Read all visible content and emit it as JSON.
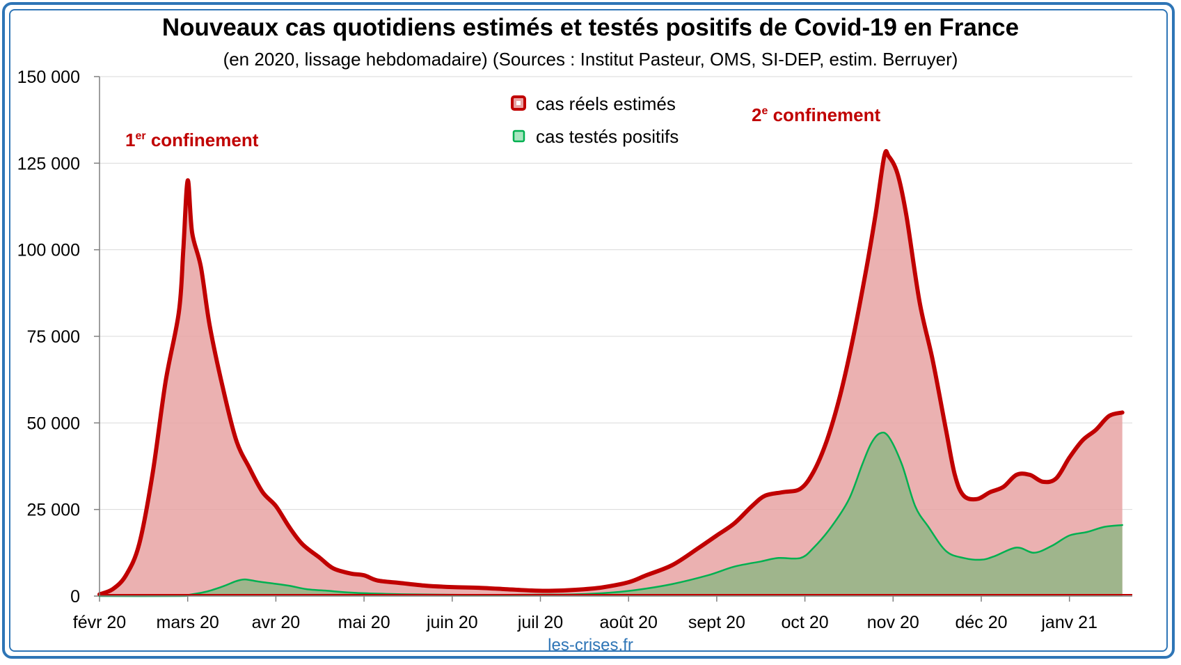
{
  "title": "Nouveaux cas quotidiens estimés et testés positifs de Covid-19 en France",
  "subtitle": "(en 2020, lissage hebdomadaire) (Sources : Institut Pasteur, OMS, SI-DEP, estim. Berruyer)",
  "credit": "les-crises.fr",
  "annotations": {
    "first_prefix": "1",
    "first_sup": "er",
    "first_text": " confinement",
    "second_prefix": "2",
    "second_sup": "e",
    "second_text": " confinement"
  },
  "colors": {
    "estimated_line": "#c00000",
    "estimated_fill": "#e8a3a3",
    "tested_line": "#00b050",
    "tested_fill": "#9fb58c",
    "frame": "#2e75b6",
    "grid": "#d9d9d9"
  },
  "chart_data": {
    "type": "area",
    "title": "Nouveaux cas quotidiens estimés et testés positifs de Covid-19 en France",
    "subtitle": "(en 2020, lissage hebdomadaire) (Sources : Institut Pasteur, OMS, SI-DEP, estim. Berruyer)",
    "xlabel": "",
    "ylabel": "",
    "x_ticks": [
      "févr 20",
      "mars 20",
      "avr 20",
      "mai 20",
      "juin 20",
      "juil 20",
      "août 20",
      "sept 20",
      "oct 20",
      "nov 20",
      "déc 20",
      "janv 21"
    ],
    "y_ticks": [
      "0",
      "25 000",
      "50 000",
      "75 000",
      "100 000",
      "125 000",
      "150 000"
    ],
    "ylim": [
      0,
      150000
    ],
    "xlim_months": [
      0,
      11.6
    ],
    "grid": "horizontal",
    "legend_position": "top-center",
    "series": [
      {
        "name": "cas réels estimés",
        "points": [
          [
            0.0,
            500
          ],
          [
            0.15,
            2000
          ],
          [
            0.3,
            6000
          ],
          [
            0.45,
            15000
          ],
          [
            0.6,
            35000
          ],
          [
            0.75,
            62000
          ],
          [
            0.9,
            82000
          ],
          [
            0.95,
            100000
          ],
          [
            1.0,
            120000
          ],
          [
            1.05,
            105000
          ],
          [
            1.15,
            95000
          ],
          [
            1.25,
            78000
          ],
          [
            1.4,
            60000
          ],
          [
            1.55,
            45000
          ],
          [
            1.7,
            37000
          ],
          [
            1.85,
            30000
          ],
          [
            2.0,
            26000
          ],
          [
            2.15,
            20000
          ],
          [
            2.3,
            15000
          ],
          [
            2.5,
            11000
          ],
          [
            2.65,
            8000
          ],
          [
            2.85,
            6500
          ],
          [
            3.0,
            6000
          ],
          [
            3.15,
            4500
          ],
          [
            3.4,
            3800
          ],
          [
            3.7,
            3000
          ],
          [
            4.0,
            2600
          ],
          [
            4.3,
            2400
          ],
          [
            4.6,
            2000
          ],
          [
            4.9,
            1600
          ],
          [
            5.1,
            1500
          ],
          [
            5.4,
            1800
          ],
          [
            5.7,
            2500
          ],
          [
            6.0,
            4000
          ],
          [
            6.2,
            6000
          ],
          [
            6.5,
            9000
          ],
          [
            6.8,
            14000
          ],
          [
            7.0,
            17500
          ],
          [
            7.2,
            21000
          ],
          [
            7.4,
            26000
          ],
          [
            7.55,
            29000
          ],
          [
            7.75,
            30000
          ],
          [
            7.95,
            31000
          ],
          [
            8.1,
            36000
          ],
          [
            8.25,
            45000
          ],
          [
            8.4,
            58000
          ],
          [
            8.55,
            75000
          ],
          [
            8.7,
            95000
          ],
          [
            8.8,
            110000
          ],
          [
            8.9,
            127000
          ],
          [
            8.95,
            127000
          ],
          [
            9.05,
            122000
          ],
          [
            9.15,
            110000
          ],
          [
            9.3,
            85000
          ],
          [
            9.45,
            68000
          ],
          [
            9.6,
            48000
          ],
          [
            9.7,
            35000
          ],
          [
            9.8,
            29000
          ],
          [
            9.95,
            28000
          ],
          [
            10.1,
            30000
          ],
          [
            10.25,
            31500
          ],
          [
            10.4,
            35000
          ],
          [
            10.55,
            35000
          ],
          [
            10.7,
            33000
          ],
          [
            10.85,
            34000
          ],
          [
            11.0,
            40000
          ],
          [
            11.15,
            45000
          ],
          [
            11.3,
            48000
          ],
          [
            11.45,
            52000
          ],
          [
            11.6,
            53000
          ]
        ]
      },
      {
        "name": "cas testés positifs",
        "points": [
          [
            0.0,
            0
          ],
          [
            0.9,
            0
          ],
          [
            1.0,
            300
          ],
          [
            1.2,
            1200
          ],
          [
            1.4,
            2800
          ],
          [
            1.55,
            4300
          ],
          [
            1.65,
            4800
          ],
          [
            1.8,
            4200
          ],
          [
            1.95,
            3700
          ],
          [
            2.15,
            3000
          ],
          [
            2.35,
            2000
          ],
          [
            2.6,
            1500
          ],
          [
            2.85,
            1000
          ],
          [
            3.15,
            700
          ],
          [
            3.5,
            500
          ],
          [
            3.9,
            400
          ],
          [
            4.4,
            300
          ],
          [
            4.9,
            400
          ],
          [
            5.4,
            500
          ],
          [
            5.8,
            1000
          ],
          [
            6.1,
            1800
          ],
          [
            6.5,
            3500
          ],
          [
            6.9,
            6000
          ],
          [
            7.2,
            8500
          ],
          [
            7.5,
            10000
          ],
          [
            7.7,
            11000
          ],
          [
            7.95,
            11000
          ],
          [
            8.1,
            14000
          ],
          [
            8.3,
            20000
          ],
          [
            8.5,
            28000
          ],
          [
            8.65,
            38000
          ],
          [
            8.75,
            44000
          ],
          [
            8.85,
            47000
          ],
          [
            8.95,
            46000
          ],
          [
            9.1,
            38000
          ],
          [
            9.25,
            26000
          ],
          [
            9.4,
            20000
          ],
          [
            9.6,
            13000
          ],
          [
            9.8,
            11000
          ],
          [
            10.0,
            10500
          ],
          [
            10.15,
            11500
          ],
          [
            10.4,
            14000
          ],
          [
            10.6,
            12500
          ],
          [
            10.8,
            14500
          ],
          [
            11.0,
            17500
          ],
          [
            11.2,
            18500
          ],
          [
            11.4,
            20000
          ],
          [
            11.6,
            20500
          ]
        ]
      }
    ]
  }
}
